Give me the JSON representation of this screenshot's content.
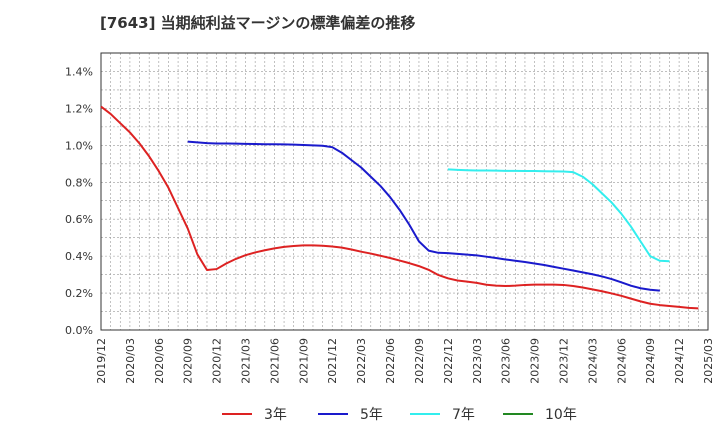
{
  "chart_data": {
    "type": "line",
    "title": "[7643]  当期純利益マージンの標準偏差の推移",
    "xlabel": "",
    "ylabel": "",
    "ylim": [
      0,
      1.5
    ],
    "yticks": [
      0,
      0.2,
      0.4,
      0.6,
      0.8,
      1.0,
      1.2,
      1.4
    ],
    "ytick_labels": [
      "0.0%",
      "0.2%",
      "0.4%",
      "0.6%",
      "0.8%",
      "1.0%",
      "1.2%",
      "1.4%"
    ],
    "x_tick_labels": [
      "2019/12",
      "2020/03",
      "2020/06",
      "2020/09",
      "2020/12",
      "2021/03",
      "2021/06",
      "2021/09",
      "2021/12",
      "2022/03",
      "2022/06",
      "2022/09",
      "2022/12",
      "2023/03",
      "2023/06",
      "2023/09",
      "2023/12",
      "2024/03",
      "2024/06",
      "2024/09",
      "2024/12",
      "2025/03"
    ],
    "grid": true,
    "legend_position": "bottom",
    "series": [
      {
        "name": "3年",
        "color": "#dd2222",
        "start_index": 0,
        "values": [
          1.21,
          1.17,
          1.12,
          1.07,
          1.01,
          0.94,
          0.86,
          0.77,
          0.66,
          0.55,
          0.41,
          0.325,
          0.33,
          0.36,
          0.385,
          0.405,
          0.42,
          0.432,
          0.442,
          0.45,
          0.455,
          0.458,
          0.458,
          0.456,
          0.452,
          0.446,
          0.436,
          0.424,
          0.414,
          0.402,
          0.39,
          0.376,
          0.362,
          0.346,
          0.326,
          0.298,
          0.28,
          0.268,
          0.262,
          0.255,
          0.245,
          0.24,
          0.238,
          0.24,
          0.244,
          0.246,
          0.246,
          0.246,
          0.244,
          0.238,
          0.23,
          0.22,
          0.21,
          0.198,
          0.185,
          0.17,
          0.155,
          0.142,
          0.135,
          0.13,
          0.125,
          0.12,
          0.117
        ]
      },
      {
        "name": "5年",
        "color": "#1a1acc",
        "start_index": 9,
        "values": [
          1.02,
          1.016,
          1.012,
          1.01,
          1.01,
          1.009,
          1.008,
          1.007,
          1.006,
          1.006,
          1.005,
          1.004,
          1.002,
          1.0,
          0.998,
          0.99,
          0.96,
          0.92,
          0.88,
          0.83,
          0.78,
          0.72,
          0.65,
          0.57,
          0.48,
          0.43,
          0.418,
          0.416,
          0.412,
          0.408,
          0.404,
          0.397,
          0.39,
          0.382,
          0.375,
          0.368,
          0.36,
          0.352,
          0.342,
          0.332,
          0.322,
          0.312,
          0.302,
          0.29,
          0.276,
          0.258,
          0.24,
          0.226,
          0.218,
          0.213
        ]
      },
      {
        "name": "7年",
        "color": "#33eeee",
        "start_index": 36,
        "values": [
          0.87,
          0.867,
          0.865,
          0.864,
          0.864,
          0.863,
          0.862,
          0.862,
          0.861,
          0.861,
          0.86,
          0.859,
          0.858,
          0.855,
          0.83,
          0.79,
          0.74,
          0.69,
          0.63,
          0.56,
          0.48,
          0.4,
          0.375,
          0.372
        ]
      },
      {
        "name": "10年",
        "color": "#228822",
        "start_index": 0,
        "values": []
      }
    ]
  }
}
